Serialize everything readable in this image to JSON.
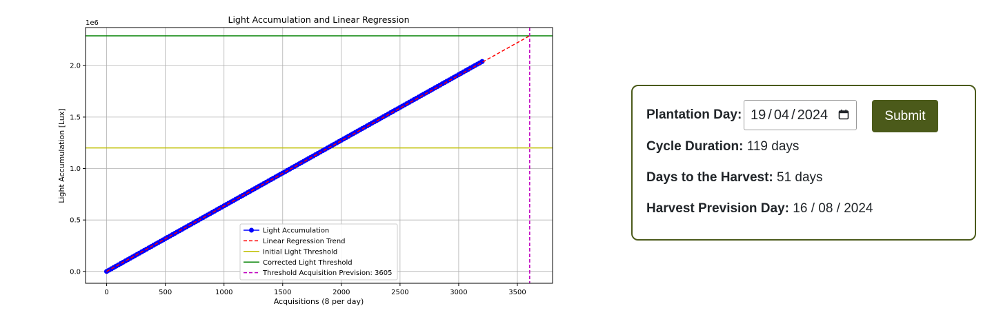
{
  "chart_data": {
    "type": "line",
    "title": "Light Accumulation and Linear Regression",
    "xlabel": "Acquisitions (8 per day)",
    "ylabel": "Light Accumulation [Lux]",
    "y_offset_label": "1e6",
    "xlim": [
      -180,
      3800
    ],
    "ylim": [
      -0.115,
      2.37
    ],
    "x_ticks": [
      0,
      500,
      1000,
      1500,
      2000,
      2500,
      3000,
      3500
    ],
    "x_tick_labels": [
      "0",
      "500",
      "1000",
      "1500",
      "2000",
      "2500",
      "3000",
      "3500"
    ],
    "y_ticks": [
      0.0,
      0.5,
      1.0,
      1.5,
      2.0
    ],
    "y_tick_labels": [
      "0.0",
      "0.5",
      "1.0",
      "1.5",
      "2.0"
    ],
    "grid": true,
    "legend_position": "bottom-center",
    "series": [
      {
        "name": "Light Accumulation",
        "color": "#0000ff",
        "marker": "circle",
        "x_start": 0,
        "x_end": 3200,
        "x_step": 20,
        "y_start": 0.0,
        "y_end": 2.04
      },
      {
        "name": "Linear Regression Trend",
        "color": "#ff0000",
        "style": "dashed",
        "x": [
          0,
          3605
        ],
        "y": [
          0.0,
          2.29
        ]
      },
      {
        "name": "Initial Light Threshold",
        "color": "#bfbf00",
        "style": "hline",
        "y": 1.2
      },
      {
        "name": "Corrected Light Threshold",
        "color": "#008000",
        "style": "hline",
        "y": 2.29
      },
      {
        "name": "Threshold Acquisition Prevision: 3605",
        "color": "#bf00bf",
        "style": "vline-dashed",
        "x": 3605
      }
    ]
  },
  "form": {
    "plantation_label": "Plantation Day:",
    "date_day": "19",
    "date_sep1": "/",
    "date_month": "04",
    "date_sep2": "/",
    "date_year": "2024",
    "submit_label": "Submit",
    "cycle_label": "Cycle Duration:",
    "cycle_value": "119 days",
    "days_label": "Days to the Harvest:",
    "days_value": "51 days",
    "harvest_label": "Harvest Prevision Day:",
    "harvest_value": "16 / 08 / 2024",
    "accent_color": "#4b5a1a",
    "calendar_icon": "calendar-icon"
  }
}
